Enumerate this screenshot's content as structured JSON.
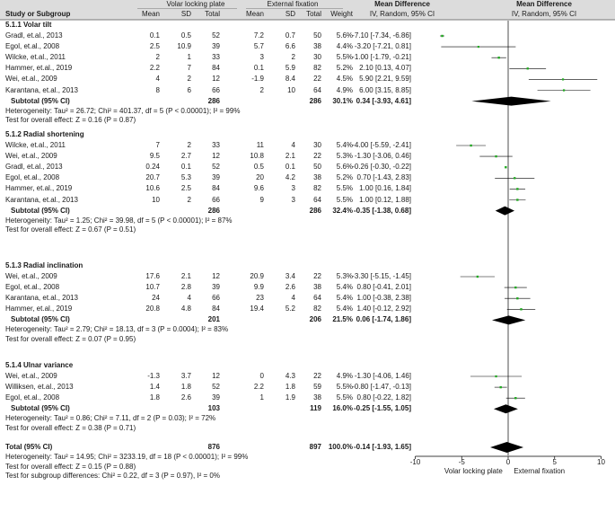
{
  "header": {
    "group1": "Volar locking plate",
    "group2": "External fixation",
    "md_title": "Mean Difference",
    "md_title2": "Mean Difference",
    "col_study": "Study or Subgroup",
    "col_mean1": "Mean",
    "col_sd1": "SD",
    "col_total1": "Total",
    "col_mean2": "Mean",
    "col_sd2": "SD",
    "col_total2": "Total",
    "col_weight": "Weight",
    "col_ci": "IV, Random, 95% CI",
    "col_ci2": "IV, Random, 95% CI"
  },
  "subgroups": [
    {
      "title": "5.1.1 Volar tilt",
      "studies": [
        {
          "study": "Gradl, et.al., 2013",
          "m1": "0.1",
          "sd1": "0.5",
          "n1": "52",
          "m2": "7.2",
          "sd2": "0.7",
          "n2": "50",
          "w": "5.6%",
          "ci": "-7.10 [-7.34, -6.86]"
        },
        {
          "study": "Egol, et.al., 2008",
          "m1": "2.5",
          "sd1": "10.9",
          "n1": "39",
          "m2": "5.7",
          "sd2": "6.6",
          "n2": "38",
          "w": "4.4%",
          "ci": "-3.20 [-7.21, 0.81]"
        },
        {
          "study": "Wilcke, et.al., 2011",
          "m1": "2",
          "sd1": "1",
          "n1": "33",
          "m2": "3",
          "sd2": "2",
          "n2": "30",
          "w": "5.5%",
          "ci": "-1.00 [-1.79, -0.21]"
        },
        {
          "study": "Hammer, et.al., 2019",
          "m1": "2.2",
          "sd1": "7",
          "n1": "84",
          "m2": "0.1",
          "sd2": "5.9",
          "n2": "82",
          "w": "5.2%",
          "ci": "2.10 [0.13, 4.07]"
        },
        {
          "study": "Wei, et.al., 2009",
          "m1": "4",
          "sd1": "2",
          "n1": "12",
          "m2": "-1.9",
          "sd2": "8.4",
          "n2": "22",
          "w": "4.5%",
          "ci": "5.90 [2.21, 9.59]"
        },
        {
          "study": "Karantana, et.al., 2013",
          "m1": "8",
          "sd1": "6",
          "n1": "66",
          "m2": "2",
          "sd2": "10",
          "n2": "64",
          "w": "4.9%",
          "ci": "6.00 [3.15, 8.85]"
        }
      ],
      "subtotal": {
        "label": "Subtotal (95% CI)",
        "n1": "286",
        "n2": "286",
        "w": "30.1%",
        "ci": "0.34 [-3.93, 4.61]"
      },
      "het": "Heterogeneity: Tau² = 26.72; Chi² = 401.37, df = 5 (P < 0.00001); I² = 99%",
      "test": "Test for overall effect: Z = 0.16 (P = 0.87)"
    },
    {
      "title": "5.1.2 Radial shortening",
      "studies": [
        {
          "study": "Wilcke, et.al., 2011",
          "m1": "7",
          "sd1": "2",
          "n1": "33",
          "m2": "11",
          "sd2": "4",
          "n2": "30",
          "w": "5.4%",
          "ci": "-4.00 [-5.59, -2.41]"
        },
        {
          "study": "Wei, et.al., 2009",
          "m1": "9.5",
          "sd1": "2.7",
          "n1": "12",
          "m2": "10.8",
          "sd2": "2.1",
          "n2": "22",
          "w": "5.3%",
          "ci": "-1.30 [-3.06, 0.46]"
        },
        {
          "study": "Gradl, et.al., 2013",
          "m1": "0.24",
          "sd1": "0.1",
          "n1": "52",
          "m2": "0.5",
          "sd2": "0.1",
          "n2": "50",
          "w": "5.6%",
          "ci": "-0.26 [-0.30, -0.22]"
        },
        {
          "study": "Egol, et.al., 2008",
          "m1": "20.7",
          "sd1": "5.3",
          "n1": "39",
          "m2": "20",
          "sd2": "4.2",
          "n2": "38",
          "w": "5.2%",
          "ci": "0.70 [-1.43, 2.83]"
        },
        {
          "study": "Hammer, et.al., 2019",
          "m1": "10.6",
          "sd1": "2.5",
          "n1": "84",
          "m2": "9.6",
          "sd2": "3",
          "n2": "82",
          "w": "5.5%",
          "ci": "1.00 [0.16, 1.84]"
        },
        {
          "study": "Karantana, et.al., 2013",
          "m1": "10",
          "sd1": "2",
          "n1": "66",
          "m2": "9",
          "sd2": "3",
          "n2": "64",
          "w": "5.5%",
          "ci": "1.00 [0.12, 1.88]"
        }
      ],
      "subtotal": {
        "label": "Subtotal (95% CI)",
        "n1": "286",
        "n2": "286",
        "w": "32.4%",
        "ci": "-0.35 [-1.38, 0.68]"
      },
      "het": "Heterogeneity: Tau² = 1.25; Chi² = 39.98, df = 5 (P < 0.00001); I² = 87%",
      "test": "Test for overall effect: Z = 0.67 (P = 0.51)"
    },
    {
      "title": "5.1.3 Radial inclination",
      "studies": [
        {
          "study": "Wei, et.al., 2009",
          "m1": "17.6",
          "sd1": "2.1",
          "n1": "12",
          "m2": "20.9",
          "sd2": "3.4",
          "n2": "22",
          "w": "5.3%",
          "ci": "-3.30 [-5.15, -1.45]"
        },
        {
          "study": "Egol, et.al., 2008",
          "m1": "10.7",
          "sd1": "2.8",
          "n1": "39",
          "m2": "9.9",
          "sd2": "2.6",
          "n2": "38",
          "w": "5.4%",
          "ci": "0.80 [-0.41, 2.01]"
        },
        {
          "study": "Karantana, et.al., 2013",
          "m1": "24",
          "sd1": "4",
          "n1": "66",
          "m2": "23",
          "sd2": "4",
          "n2": "64",
          "w": "5.4%",
          "ci": "1.00 [-0.38, 2.38]"
        },
        {
          "study": "Hammer, et.al., 2019",
          "m1": "20.8",
          "sd1": "4.8",
          "n1": "84",
          "m2": "19.4",
          "sd2": "5.2",
          "n2": "82",
          "w": "5.4%",
          "ci": "1.40 [-0.12, 2.92]"
        }
      ],
      "subtotal": {
        "label": "Subtotal (95% CI)",
        "n1": "201",
        "n2": "206",
        "w": "21.5%",
        "ci": "0.06 [-1.74, 1.86]"
      },
      "het": "Heterogeneity: Tau² = 2.79; Chi² = 18.13, df = 3 (P = 0.0004); I² = 83%",
      "test": "Test for overall effect: Z = 0.07 (P = 0.95)"
    },
    {
      "title": "5.1.4 Ulnar variance",
      "studies": [
        {
          "study": "Wei, et.al., 2009",
          "m1": "-1.3",
          "sd1": "3.7",
          "n1": "12",
          "m2": "0",
          "sd2": "4.3",
          "n2": "22",
          "w": "4.9%",
          "ci": "-1.30 [-4.06, 1.46]"
        },
        {
          "study": "Williksen, et.al., 2013",
          "m1": "1.4",
          "sd1": "1.8",
          "n1": "52",
          "m2": "2.2",
          "sd2": "1.8",
          "n2": "59",
          "w": "5.5%",
          "ci": "-0.80 [-1.47, -0.13]"
        },
        {
          "study": "Egol, et.al., 2008",
          "m1": "1.8",
          "sd1": "2.6",
          "n1": "39",
          "m2": "1",
          "sd2": "1.9",
          "n2": "38",
          "w": "5.5%",
          "ci": "0.80 [-0.22, 1.82]"
        }
      ],
      "subtotal": {
        "label": "Subtotal (95% CI)",
        "n1": "103",
        "n2": "119",
        "w": "16.0%",
        "ci": "-0.25 [-1.55, 1.05]"
      },
      "het": "Heterogeneity: Tau² = 0.86; Chi² = 7.11, df = 2 (P = 0.03); I² = 72%",
      "test": "Test for overall effect: Z = 0.38 (P = 0.71)"
    }
  ],
  "total": {
    "label": "Total (95% CI)",
    "n1": "876",
    "n2": "897",
    "w": "100.0%",
    "ci": "-0.14 [-1.93, 1.65]",
    "het": "Heterogeneity: Tau² = 14.95; Chi² = 3233.19, df = 18 (P < 0.00001); I² = 99%",
    "test": "Test for overall effect: Z = 0.15 (P = 0.88)",
    "subgroup_test": "Test for subgroup differences: Chi² = 0.22, df = 3 (P = 0.97), I² = 0%"
  },
  "axis": {
    "ticks": [
      "-10",
      "-5",
      "0",
      "5",
      "10"
    ],
    "left_label": "Volar locking plate",
    "right_label": "External fixation"
  },
  "colors": {
    "square": "#22aa22",
    "diamond": "#000000",
    "header_bg": "#dcdcdc"
  },
  "chart_data": {
    "type": "forest",
    "title": "Mean Difference, IV, Random, 95% CI",
    "xlim": [
      -10,
      10
    ],
    "xticks": [
      -10,
      -5,
      0,
      5,
      10
    ],
    "xlabel_left": "Volar locking plate",
    "xlabel_right": "External fixation",
    "subgroups": [
      {
        "name": "5.1.1 Volar tilt",
        "points": [
          {
            "study": "Gradl, et.al., 2013",
            "est": -7.1,
            "lo": -7.34,
            "hi": -6.86,
            "weight": 5.6
          },
          {
            "study": "Egol, et.al., 2008",
            "est": -3.2,
            "lo": -7.21,
            "hi": 0.81,
            "weight": 4.4
          },
          {
            "study": "Wilcke, et.al., 2011",
            "est": -1.0,
            "lo": -1.79,
            "hi": -0.21,
            "weight": 5.5
          },
          {
            "study": "Hammer, et.al., 2019",
            "est": 2.1,
            "lo": 0.13,
            "hi": 4.07,
            "weight": 5.2
          },
          {
            "study": "Wei, et.al., 2009",
            "est": 5.9,
            "lo": 2.21,
            "hi": 9.59,
            "weight": 4.5
          },
          {
            "study": "Karantana, et.al., 2013",
            "est": 6.0,
            "lo": 3.15,
            "hi": 8.85,
            "weight": 4.9
          }
        ],
        "pooled": {
          "est": 0.34,
          "lo": -3.93,
          "hi": 4.61
        }
      },
      {
        "name": "5.1.2 Radial shortening",
        "points": [
          {
            "study": "Wilcke, et.al., 2011",
            "est": -4.0,
            "lo": -5.59,
            "hi": -2.41,
            "weight": 5.4
          },
          {
            "study": "Wei, et.al., 2009",
            "est": -1.3,
            "lo": -3.06,
            "hi": 0.46,
            "weight": 5.3
          },
          {
            "study": "Gradl, et.al., 2013",
            "est": -0.26,
            "lo": -0.3,
            "hi": -0.22,
            "weight": 5.6
          },
          {
            "study": "Egol, et.al., 2008",
            "est": 0.7,
            "lo": -1.43,
            "hi": 2.83,
            "weight": 5.2
          },
          {
            "study": "Hammer, et.al., 2019",
            "est": 1.0,
            "lo": 0.16,
            "hi": 1.84,
            "weight": 5.5
          },
          {
            "study": "Karantana, et.al., 2013",
            "est": 1.0,
            "lo": 0.12,
            "hi": 1.88,
            "weight": 5.5
          }
        ],
        "pooled": {
          "est": -0.35,
          "lo": -1.38,
          "hi": 0.68
        }
      },
      {
        "name": "5.1.3 Radial inclination",
        "points": [
          {
            "study": "Wei, et.al., 2009",
            "est": -3.3,
            "lo": -5.15,
            "hi": -1.45,
            "weight": 5.3
          },
          {
            "study": "Egol, et.al., 2008",
            "est": 0.8,
            "lo": -0.41,
            "hi": 2.01,
            "weight": 5.4
          },
          {
            "study": "Karantana, et.al., 2013",
            "est": 1.0,
            "lo": -0.38,
            "hi": 2.38,
            "weight": 5.4
          },
          {
            "study": "Hammer, et.al., 2019",
            "est": 1.4,
            "lo": -0.12,
            "hi": 2.92,
            "weight": 5.4
          }
        ],
        "pooled": {
          "est": 0.06,
          "lo": -1.74,
          "hi": 1.86
        }
      },
      {
        "name": "5.1.4 Ulnar variance",
        "points": [
          {
            "study": "Wei, et.al., 2009",
            "est": -1.3,
            "lo": -4.06,
            "hi": 1.46,
            "weight": 4.9
          },
          {
            "study": "Williksen, et.al., 2013",
            "est": -0.8,
            "lo": -1.47,
            "hi": -0.13,
            "weight": 5.5
          },
          {
            "study": "Egol, et.al., 2008",
            "est": 0.8,
            "lo": -0.22,
            "hi": 1.82,
            "weight": 5.5
          }
        ],
        "pooled": {
          "est": -0.25,
          "lo": -1.55,
          "hi": 1.05
        }
      }
    ],
    "overall": {
      "est": -0.14,
      "lo": -1.93,
      "hi": 1.65
    }
  }
}
